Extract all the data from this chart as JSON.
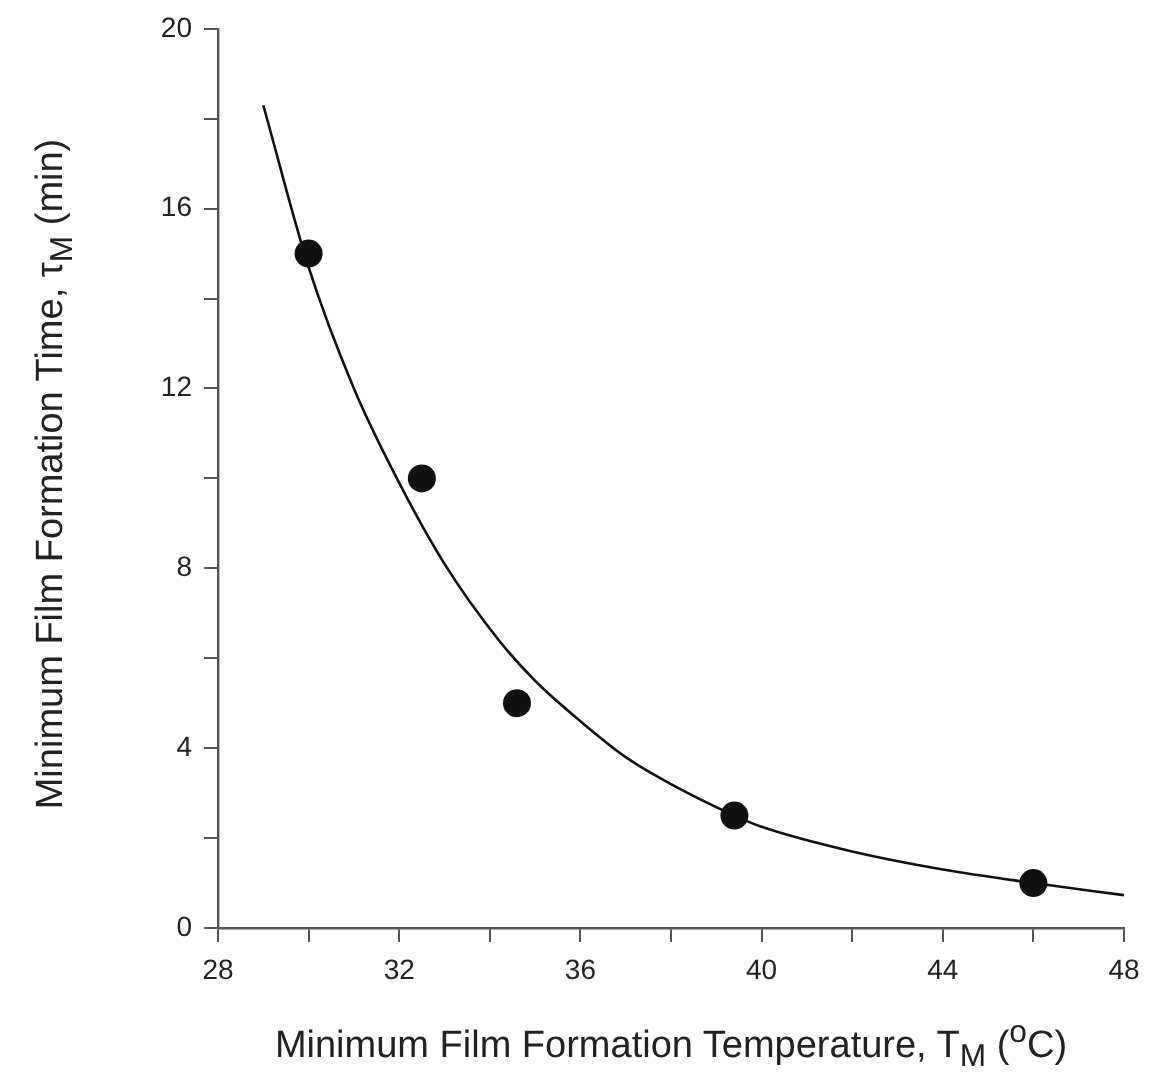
{
  "chart_data": {
    "type": "scatter",
    "xlabel": "Minimum Film Formation Temperature, T$_{M}$ ($^{o}$C)",
    "ylabel": "Minimum Film Formation Time, τ$_{M}$ (min)",
    "xlim": [
      28,
      48
    ],
    "ylim": [
      0,
      20
    ],
    "xticks": [
      28,
      {
        "value": 30,
        "label": null
      },
      32,
      {
        "value": 34,
        "label": null
      },
      36,
      {
        "value": 38,
        "label": null
      },
      40,
      {
        "value": 42,
        "label": null
      },
      44,
      {
        "value": 46,
        "label": null
      },
      48
    ],
    "yticks": [
      0,
      {
        "value": 2,
        "label": null
      },
      4,
      {
        "value": 6,
        "label": null
      },
      8,
      {
        "value": 10,
        "label": null
      },
      12,
      {
        "value": 14,
        "label": null
      },
      16,
      {
        "value": 18,
        "label": null
      },
      20
    ],
    "marker": "circle",
    "series": [
      {
        "color": "#111111",
        "x": [
          30,
          32.5,
          34.6,
          39.4,
          46
        ],
        "values": [
          15,
          10,
          5,
          2.5,
          1
        ]
      },
      {
        "type": "line",
        "color": "#111111",
        "marker": "none",
        "x": [
          29,
          30,
          31,
          32,
          33,
          34.2,
          35,
          36,
          37,
          38,
          39.4,
          40,
          42,
          44,
          46,
          48
        ],
        "values": [
          18.3,
          14.7,
          12,
          9.9,
          8.1,
          6.4,
          5.5,
          4.6,
          3.8,
          3.2,
          2.5,
          2.25,
          1.7,
          1.3,
          1.0,
          0.73
        ]
      }
    ]
  }
}
